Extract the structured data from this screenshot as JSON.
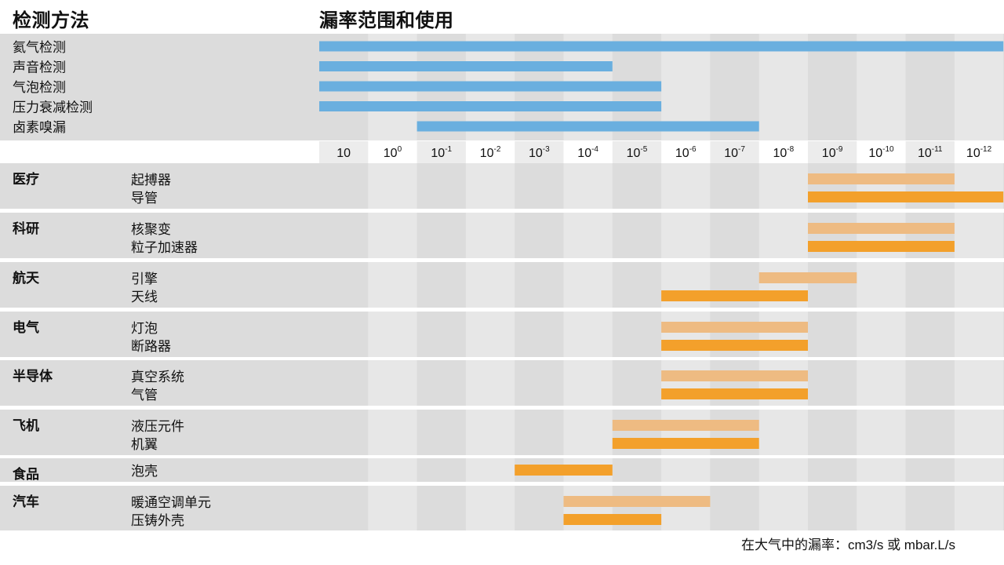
{
  "header": {
    "methods_title": "检测方法",
    "range_title": "漏率范围和使用"
  },
  "footnote": "在大气中的漏率：cm3/s 或 mbar.L/s",
  "chart_data": {
    "type": "bar",
    "subtype": "horizontal-range-gantt",
    "scale": "logarithmic-decreasing",
    "x": [
      "10",
      "10^0",
      "10^-1",
      "10^-2",
      "10^-3",
      "10^-4",
      "10^-5",
      "10^-6",
      "10^-7",
      "10^-8",
      "10^-9",
      "10^-10",
      "10^-11",
      "10^-12"
    ],
    "x_ticks": [
      {
        "base": "10",
        "exp": ""
      },
      {
        "base": "10",
        "exp": "0"
      },
      {
        "base": "10",
        "exp": "-1"
      },
      {
        "base": "10",
        "exp": "-2"
      },
      {
        "base": "10",
        "exp": "-3"
      },
      {
        "base": "10",
        "exp": "-4"
      },
      {
        "base": "10",
        "exp": "-5"
      },
      {
        "base": "10",
        "exp": "-6"
      },
      {
        "base": "10",
        "exp": "-7"
      },
      {
        "base": "10",
        "exp": "-8"
      },
      {
        "base": "10",
        "exp": "-9"
      },
      {
        "base": "10",
        "exp": "-10"
      },
      {
        "base": "10",
        "exp": "-11"
      },
      {
        "base": "10",
        "exp": "-12"
      }
    ],
    "methods": [
      {
        "name": "氦气检测",
        "range": [
          "10",
          "10^-12"
        ]
      },
      {
        "name": "声音检测",
        "range": [
          "10",
          "10^-4"
        ]
      },
      {
        "name": "气泡检测",
        "range": [
          "10",
          "10^-5"
        ]
      },
      {
        "name": "压力衰减检测",
        "range": [
          "10",
          "10^-5"
        ]
      },
      {
        "name": "卤素嗅漏",
        "range": [
          "10^-1",
          "10^-7"
        ]
      }
    ],
    "industries": [
      {
        "name": "医疗",
        "items": [
          {
            "name": "起搏器",
            "range": [
              "10^-9",
              "10^-11"
            ]
          },
          {
            "name": "导管",
            "range": [
              "10^-9",
              "10^-12"
            ]
          }
        ]
      },
      {
        "name": "科研",
        "items": [
          {
            "name": "核聚变",
            "range": [
              "10^-9",
              "10^-11"
            ]
          },
          {
            "name": "粒子加速器",
            "range": [
              "10^-9",
              "10^-11"
            ]
          }
        ]
      },
      {
        "name": "航天",
        "items": [
          {
            "name": "引擎",
            "range": [
              "10^-8",
              "10^-9"
            ]
          },
          {
            "name": "天线",
            "range": [
              "10^-6",
              "10^-8"
            ]
          }
        ]
      },
      {
        "name": "电气",
        "items": [
          {
            "name": "灯泡",
            "range": [
              "10^-6",
              "10^-8"
            ]
          },
          {
            "name": "断路器",
            "range": [
              "10^-6",
              "10^-8"
            ]
          }
        ]
      },
      {
        "name": "半导体",
        "items": [
          {
            "name": "真空系统",
            "range": [
              "10^-6",
              "10^-8"
            ]
          },
          {
            "name": "气管",
            "range": [
              "10^-6",
              "10^-8"
            ]
          }
        ]
      },
      {
        "name": "飞机",
        "items": [
          {
            "name": "液压元件",
            "range": [
              "10^-5",
              "10^-7"
            ]
          },
          {
            "name": "机翼",
            "range": [
              "10^-5",
              "10^-7"
            ]
          }
        ]
      },
      {
        "name": "食品",
        "items": [
          {
            "name": "泡壳",
            "range": [
              "10^-3",
              "10^-4"
            ]
          }
        ]
      },
      {
        "name": "汽车",
        "items": [
          {
            "name": "暖通空调单元",
            "range": [
              "10^-4",
              "10^-6"
            ]
          },
          {
            "name": "压铸外壳",
            "range": [
              "10^-4",
              "10^-5"
            ]
          }
        ]
      }
    ],
    "colors": {
      "method_bar": "#6aafdf",
      "primary_bar": "#f3a02b",
      "secondary_bar": "#eebb82",
      "row_band": "#dcdcdc",
      "column_alt": "#e7e7e7"
    }
  }
}
